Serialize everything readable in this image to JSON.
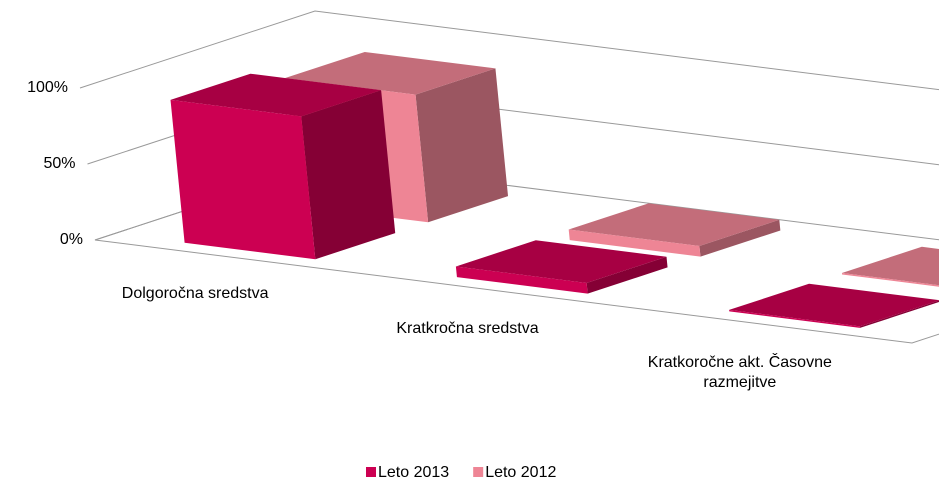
{
  "chart_data": {
    "type": "bar3d",
    "categories": [
      "Dolgoročna sredstva",
      "Kratkročna sredstva",
      "Kratkoročne akt. Časovne razmejitve"
    ],
    "series": [
      {
        "name": "Leto 2013",
        "color": "#cc0052",
        "values": [
          94,
          7,
          1
        ]
      },
      {
        "name": "Leto 2012",
        "color": "#ee8595",
        "values": [
          84,
          7,
          1
        ]
      }
    ],
    "ylim": [
      0,
      100
    ],
    "yticks": [
      {
        "value": 0,
        "label": "0%"
      },
      {
        "value": 50,
        "label": "50%"
      },
      {
        "value": 100,
        "label": "100%"
      }
    ],
    "grid": true,
    "legend": "bottom"
  }
}
